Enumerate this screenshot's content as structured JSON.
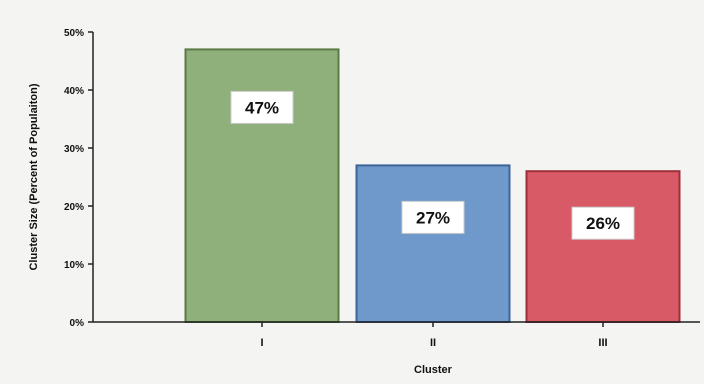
{
  "chart_data": {
    "type": "bar",
    "categories": [
      "I",
      "II",
      "III"
    ],
    "values": [
      47,
      27,
      26
    ],
    "data_labels": [
      "47%",
      "27%",
      "26%"
    ],
    "colors": [
      "#8fb07a",
      "#6f98cb",
      "#d85a66"
    ],
    "stroke_colors": [
      "#5b7a46",
      "#3f649a",
      "#9c2f3a"
    ],
    "ylim": [
      0,
      50
    ],
    "yticks": [
      {
        "value": 0,
        "label": "0%"
      },
      {
        "value": 10,
        "label": "10%"
      },
      {
        "value": 20,
        "label": "20%"
      },
      {
        "value": 30,
        "label": "30%"
      },
      {
        "value": 40,
        "label": "40%"
      },
      {
        "value": 50,
        "label": "50%"
      }
    ],
    "title": "",
    "xlabel": "Cluster",
    "ylabel": "Cluster Size (Percent of Populaiton)",
    "grid": false,
    "legend": "none"
  }
}
